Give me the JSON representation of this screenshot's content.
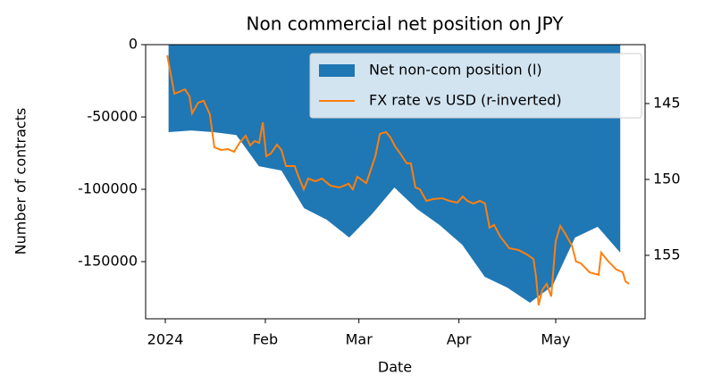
{
  "chart_data": {
    "type": "area-line",
    "title": "Non commercial net position on JPY",
    "xlabel": "Date",
    "ylabel": "Number of contracts",
    "xlim": [
      -6.1,
      148.7
    ],
    "xticks": [
      {
        "value": 0,
        "label": "2024"
      },
      {
        "value": 31,
        "label": "Feb"
      },
      {
        "value": 60,
        "label": "Mar"
      },
      {
        "value": 91,
        "label": "Apr"
      },
      {
        "value": 121,
        "label": "May"
      }
    ],
    "ylim": [
      -189500,
      0
    ],
    "yticks": [
      0,
      -50000,
      -100000,
      -150000
    ],
    "y2lim": [
      159.18,
      141.12
    ],
    "y2ticks": [
      145,
      150,
      155
    ],
    "legend": "upper right",
    "series": [
      {
        "name": "Net non-com position (l)",
        "color": "#1f77b4",
        "type": "area",
        "x": [
          1,
          8,
          15,
          22,
          29,
          36,
          43,
          50,
          57,
          64,
          71,
          78,
          85,
          92,
          99,
          106,
          113,
          120,
          127,
          134,
          141
        ],
        "values": [
          -60500,
          -59300,
          -60500,
          -62500,
          -84000,
          -87000,
          -113000,
          -121000,
          -133300,
          -117300,
          -98800,
          -113600,
          -124700,
          -138300,
          -160500,
          -168000,
          -178400,
          -166700,
          -133300,
          -125900,
          -143800
        ]
      },
      {
        "name": "FX rate vs USD (r-inverted)",
        "color": "#ff7f0e",
        "type": "line",
        "axis": "y2",
        "x": [
          0.6,
          2.8,
          4.2,
          6.1,
          7.5,
          8.3,
          10.2,
          11.9,
          13.8,
          15.2,
          17.2,
          19.4,
          21.3,
          23.0,
          24.9,
          26.3,
          27.7,
          29.1,
          30.2,
          31.3,
          32.7,
          34.6,
          36.0,
          37.4,
          40.1,
          41.3,
          42.9,
          44.3,
          46.5,
          48.5,
          51.2,
          54.0,
          56.8,
          58.1,
          59.5,
          62.3,
          63.7,
          65.1,
          66.5,
          68.4,
          69.8,
          71.2,
          72.8,
          74.8,
          76.1,
          77.5,
          78.9,
          80.9,
          83.1,
          85.8,
          88.0,
          90.5,
          92.2,
          93.6,
          95.5,
          97.5,
          99.1,
          100.5,
          101.9,
          103.8,
          106.6,
          109.4,
          112.1,
          114.1,
          114.9,
          115.7,
          116.8,
          118.2,
          119.6,
          121.0,
          122.4,
          124.0,
          126.0,
          127.3,
          128.8,
          131.5,
          134.3,
          135.1,
          137.1,
          139.8,
          141.8,
          142.6,
          143.7
        ],
        "values": [
          141.82,
          144.35,
          144.24,
          144.06,
          144.53,
          145.65,
          144.94,
          144.82,
          145.71,
          147.88,
          148.06,
          148.0,
          148.18,
          147.59,
          147.12,
          147.76,
          147.47,
          147.59,
          146.24,
          148.47,
          148.29,
          147.71,
          148.06,
          149.12,
          149.12,
          149.82,
          150.65,
          149.94,
          150.12,
          149.94,
          150.41,
          150.53,
          150.29,
          150.65,
          149.82,
          150.24,
          149.35,
          148.47,
          147.0,
          146.88,
          147.24,
          147.82,
          148.29,
          148.94,
          148.94,
          150.53,
          150.65,
          151.41,
          151.29,
          151.24,
          151.41,
          151.53,
          151.12,
          151.41,
          151.59,
          151.41,
          151.59,
          153.18,
          153.0,
          153.76,
          154.53,
          154.65,
          154.94,
          155.24,
          156.41,
          158.29,
          157.29,
          156.88,
          157.71,
          154.06,
          153.06,
          153.59,
          154.35,
          155.41,
          155.53,
          156.12,
          156.29,
          154.82,
          155.35,
          155.94,
          156.12,
          156.71,
          156.88
        ]
      }
    ]
  }
}
